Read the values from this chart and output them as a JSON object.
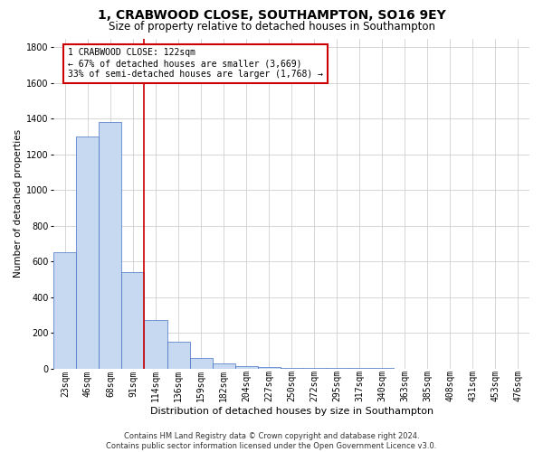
{
  "title": "1, CRABWOOD CLOSE, SOUTHAMPTON, SO16 9EY",
  "subtitle": "Size of property relative to detached houses in Southampton",
  "xlabel": "Distribution of detached houses by size in Southampton",
  "ylabel": "Number of detached properties",
  "bar_labels": [
    "23sqm",
    "46sqm",
    "68sqm",
    "91sqm",
    "114sqm",
    "136sqm",
    "159sqm",
    "182sqm",
    "204sqm",
    "227sqm",
    "250sqm",
    "272sqm",
    "295sqm",
    "317sqm",
    "340sqm",
    "363sqm",
    "385sqm",
    "408sqm",
    "431sqm",
    "453sqm",
    "476sqm"
  ],
  "bar_values": [
    650,
    1300,
    1380,
    540,
    270,
    150,
    60,
    30,
    15,
    10,
    6,
    5,
    3,
    2,
    2,
    1,
    1,
    1,
    1,
    0,
    0
  ],
  "bar_color": "#c6d9f0",
  "bar_edge_color": "#4472c4",
  "property_line_color": "#cc0000",
  "annotation_text": "1 CRABWOOD CLOSE: 122sqm\n← 67% of detached houses are smaller (3,669)\n33% of semi-detached houses are larger (1,768) →",
  "annotation_box_color": "#cc0000",
  "ylim": [
    0,
    1850
  ],
  "yticks": [
    0,
    200,
    400,
    600,
    800,
    1000,
    1200,
    1400,
    1600,
    1800
  ],
  "footnote": "Contains HM Land Registry data © Crown copyright and database right 2024.\nContains public sector information licensed under the Open Government Licence v3.0.",
  "background_color": "#ffffff",
  "grid_color": "#d0d0d0",
  "title_fontsize": 10,
  "subtitle_fontsize": 8.5,
  "xlabel_fontsize": 8,
  "ylabel_fontsize": 7.5,
  "tick_fontsize": 7,
  "annotation_fontsize": 7,
  "footnote_fontsize": 6
}
